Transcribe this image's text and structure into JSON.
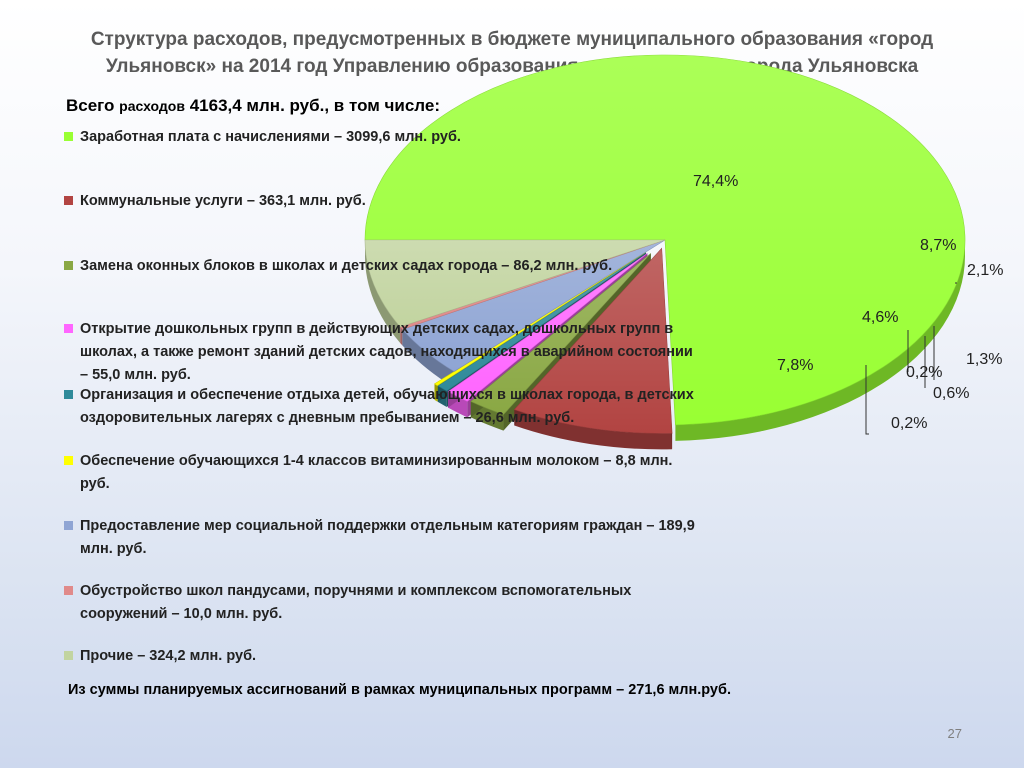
{
  "slide": {
    "title_line1": "Структура расходов, предусмотренных в бюджете муниципального образования «город",
    "title_line2": "Ульяновск» на 2014 год Управлению образования администрации города Ульяновска",
    "total_word": "Всего",
    "total_small": "расходов",
    "total_rest": "4163,4 млн. руб., в том числе:",
    "footer_note": "Из суммы планируемых ассигнований в рамках муниципальных программ – 271,6 млн.руб.",
    "page_number": "27"
  },
  "chart_data": {
    "type": "pie",
    "title": "",
    "total": 4163.4,
    "unit": "млн. руб.",
    "slices": [
      {
        "label": "Заработная плата с начислениями – 3099,6 млн. руб.",
        "value": 3099.6,
        "percent_label": "74,4%",
        "color": "#99ff33"
      },
      {
        "label": "Коммунальные услуги – 363,1 млн. руб.",
        "value": 363.1,
        "percent_label": "8,7%",
        "color": "#b24442"
      },
      {
        "label": "Замена оконных блоков в школах и детских садах города – 86,2 млн. руб.",
        "value": 86.2,
        "percent_label": "2,1%",
        "color": "#8aa844"
      },
      {
        "label": "Открытие дошкольных групп в действующих детских садах, дошкольных групп в школах, а также ремонт зданий детских садов, находящихся в аварийном состоянии – 55,0 млн. руб.",
        "value": 55.0,
        "percent_label": "1,3%",
        "color": "#ff66ff"
      },
      {
        "label": "Организация и обеспечение отдыха детей, обучающихся в школах города, в детских оздоровительных лагерях с дневным пребыванием – 26,6 млн. руб.",
        "value": 26.6,
        "percent_label": "0,6%",
        "color": "#2f8a9a"
      },
      {
        "label": "Обеспечение обучающихся 1-4 классов витаминизированным молоком – 8,8 млн. руб.",
        "value": 8.8,
        "percent_label": "0,2%",
        "color": "#ffff00"
      },
      {
        "label": "Предоставление мер социальной поддержки отдельным категориям граждан – 189,9 млн. руб.",
        "value": 189.9,
        "percent_label": "4,6%",
        "color": "#8fa5d4"
      },
      {
        "label": "Обустройство школ пандусами, поручнями и комплексом вспомогательных сооружений – 10,0 млн. руб.",
        "value": 10.0,
        "percent_label": "0,2%",
        "color": "#e08a8a"
      },
      {
        "label": "Прочие – 324,2 млн. руб.",
        "value": 324.2,
        "percent_label": "7,8%",
        "color": "#c2d4a0"
      }
    ]
  }
}
